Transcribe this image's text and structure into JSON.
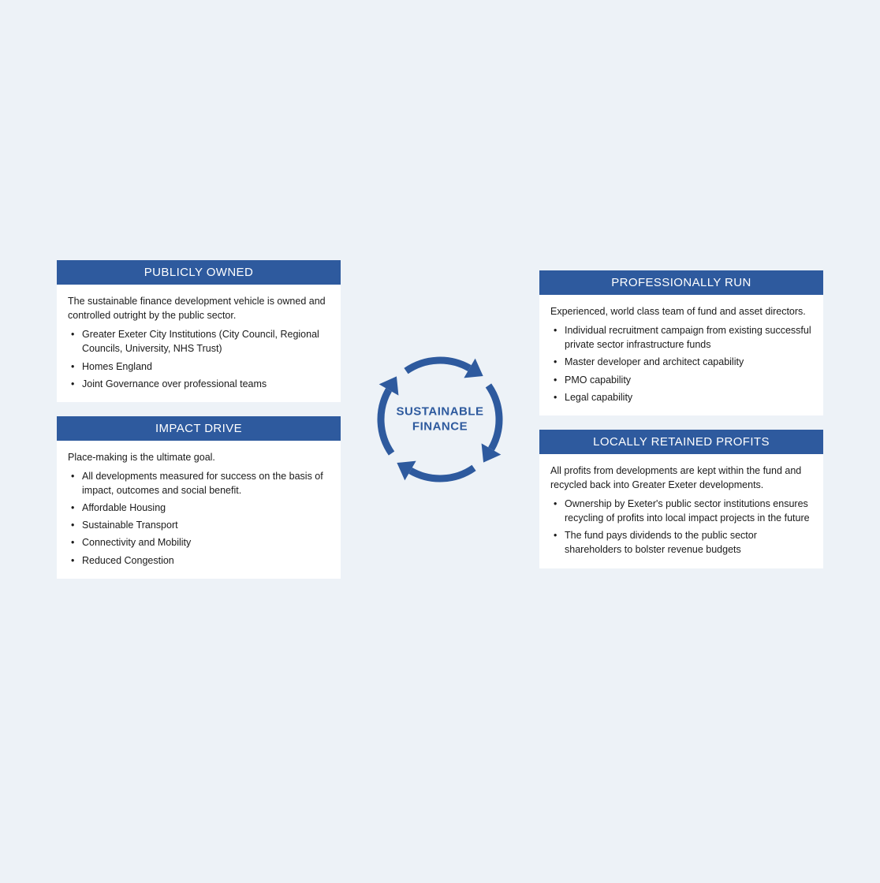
{
  "colors": {
    "page_bg": "#edf2f7",
    "card_bg": "#ffffff",
    "header_bg": "#2e5a9e",
    "header_text": "#ffffff",
    "body_text": "#1a1a1a",
    "accent": "#2e5a9e",
    "center_label": "#2e5a9e"
  },
  "center": {
    "line1": "SUSTAINABLE",
    "line2": "FINANCE"
  },
  "cards": {
    "top_left": {
      "title": "PUBLICLY OWNED",
      "intro": "The sustainable finance development vehicle is owned and controlled outright by the public sector.",
      "bullets": [
        "Greater Exeter City Institutions (City Council, Regional Councils, University, NHS Trust)",
        "Homes England",
        "Joint Governance over professional teams"
      ]
    },
    "bottom_left": {
      "title": "IMPACT DRIVE",
      "intro": "Place-making is the ultimate goal.",
      "bullets": [
        "All developments measured for success on the basis of impact, outcomes and social benefit.",
        "Affordable Housing",
        "Sustainable Transport",
        "Connectivity and Mobility",
        "Reduced Congestion"
      ]
    },
    "top_right": {
      "title": "PROFESSIONALLY RUN",
      "intro": "Experienced, world class team of fund and asset directors.",
      "bullets": [
        "Individual recruitment campaign from existing successful private sector infrastructure funds",
        "Master developer and architect capability",
        "PMO capability",
        "Legal capability"
      ]
    },
    "bottom_right": {
      "title": "LOCALLY RETAINED PROFITS",
      "intro": "All profits from developments are kept within the fund and recycled back into Greater Exeter developments.",
      "bullets": [
        "Ownership by Exeter's public sector institutions ensures recycling of profits into local impact projects in the future",
        "The fund pays dividends to the public sector shareholders to bolster revenue budgets"
      ]
    }
  },
  "cycle": {
    "stroke_color": "#2e5a9e",
    "stroke_width": 9,
    "radius": 75,
    "arrow_size": 22
  }
}
